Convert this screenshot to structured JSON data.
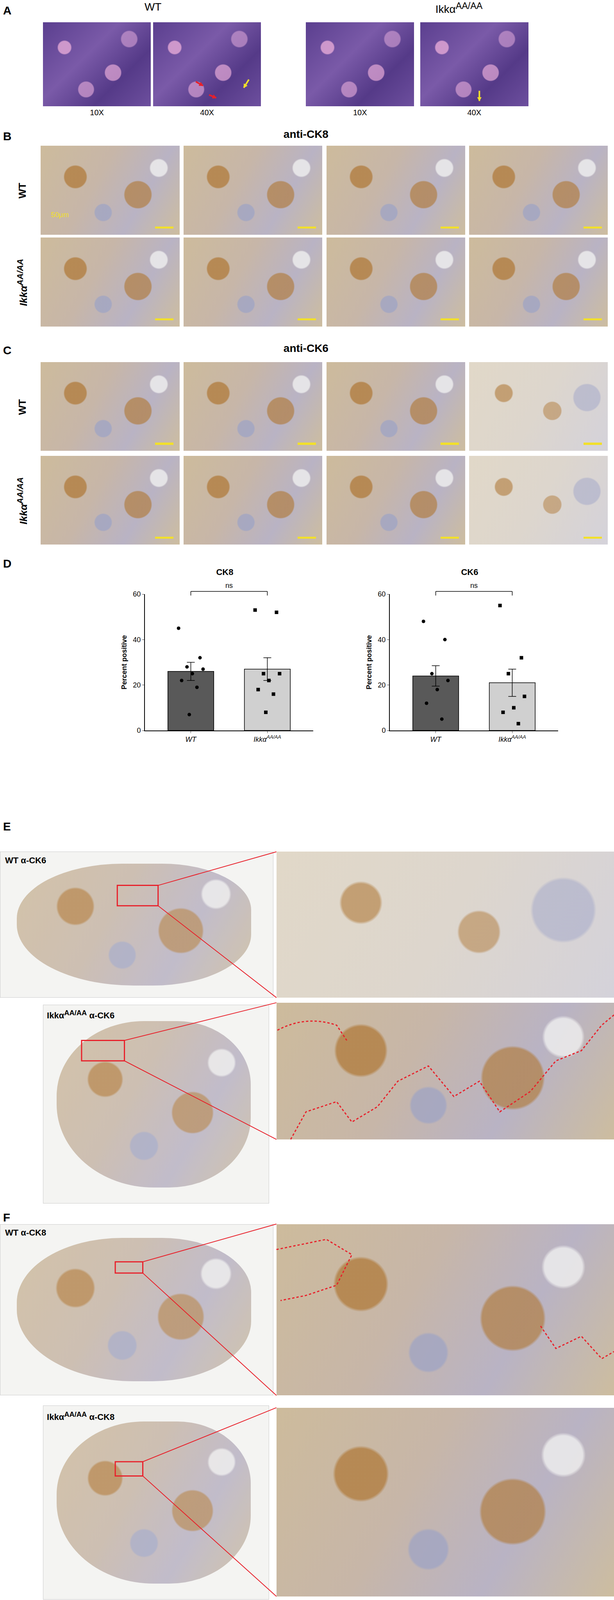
{
  "panel_labels": [
    "A",
    "B",
    "C",
    "D",
    "E",
    "F"
  ],
  "genotype": {
    "sup": "AA/AA"
  },
  "panel_a": {
    "columns": [
      "WT",
      "IkkαAA/AA"
    ],
    "magnifications": [
      "10X",
      "40X",
      "10X",
      "40X"
    ]
  },
  "panel_b": {
    "title": "anti-CK8",
    "rows": [
      "WT",
      "IkkαAA/AA"
    ],
    "scale_bar": "50μm"
  },
  "panel_c": {
    "title": "anti-CK6",
    "rows": [
      "WT",
      "IkkαAA/AA"
    ]
  },
  "panel_e": {
    "overview_labels": [
      "WT α-CK6",
      "IkkαAA/AA α-CK6"
    ]
  },
  "panel_f": {
    "overview_labels": [
      "WT  α-CK8",
      "IkkαAA/AA α-CK8"
    ]
  },
  "chart_data": [
    {
      "type": "bar",
      "title": "CK8",
      "y_label": "Percent positive",
      "categories": [
        "WT",
        "IkkαAA/AA"
      ],
      "values": [
        26,
        27
      ],
      "errors": [
        4,
        5
      ],
      "points": [
        [
          45,
          32,
          28,
          27,
          25,
          22,
          19,
          7
        ],
        [
          53,
          52,
          25,
          25,
          22,
          18,
          16,
          8
        ]
      ],
      "colors": [
        "#595959",
        "#d0d0d0"
      ],
      "ylim": [
        0,
        60
      ],
      "yticks": [
        0,
        20,
        40,
        60
      ],
      "annotations": [
        "ns"
      ]
    },
    {
      "type": "bar",
      "title": "CK6",
      "y_label": "Percent positive",
      "categories": [
        "WT",
        "IkkαAA/AA"
      ],
      "values": [
        24,
        21
      ],
      "errors": [
        4.5,
        6
      ],
      "points": [
        [
          48,
          40,
          25,
          22,
          18,
          12,
          5
        ],
        [
          55,
          32,
          25,
          15,
          10,
          8,
          3
        ]
      ],
      "colors": [
        "#595959",
        "#d0d0d0"
      ],
      "ylim": [
        0,
        60
      ],
      "yticks": [
        0,
        20,
        40,
        60
      ],
      "annotations": [
        "ns"
      ]
    }
  ]
}
